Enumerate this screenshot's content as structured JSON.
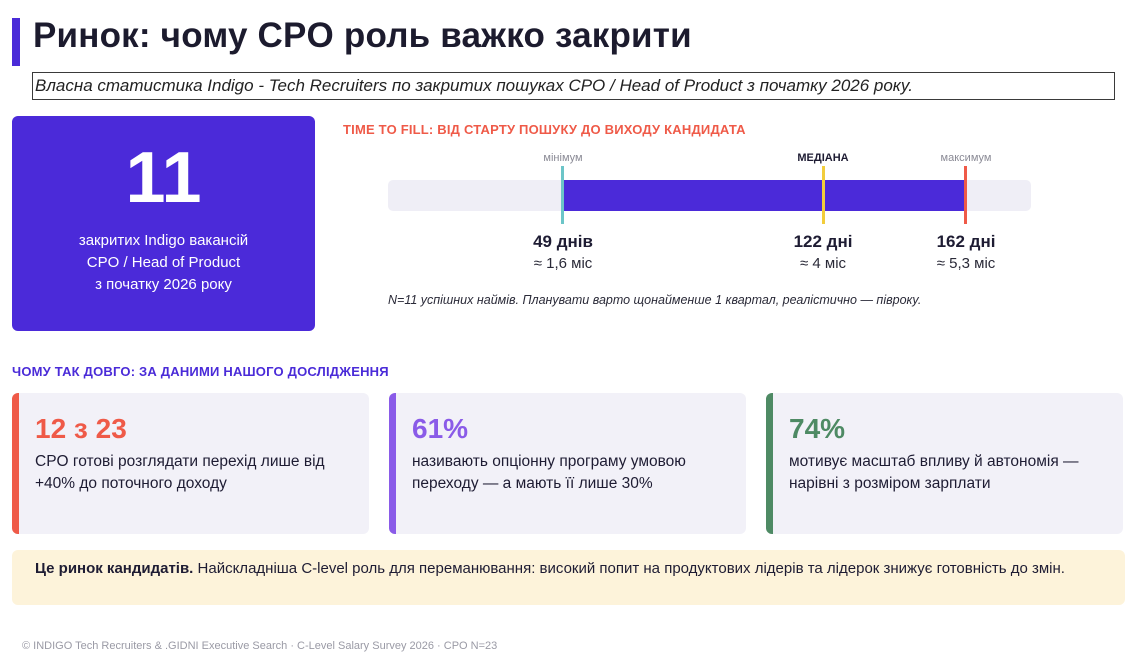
{
  "header": {
    "title": "Ринок: чому CPO роль важко закрити",
    "subtitle": "Власна статистика Indigo - Tech Recruiters по закритих пошуках CPO / Head of Product з початку 2026 року."
  },
  "stat": {
    "number": "11",
    "line1": "закритих  Indigo вакансій",
    "line2": "CPO / Head of Product",
    "line3": "з початку 2026 року"
  },
  "time_to_fill": {
    "heading": "TIME TO FILL: ВІД СТАРТУ ПОШУКУ ДО ВИХОДУ КАНДИДАТА",
    "min_label": "мінімум",
    "median_label": "МЕДІАНА",
    "max_label": "максимум",
    "min_value": "49 днів",
    "min_months": "≈ 1,6 міс",
    "median_value": "122 дні",
    "median_months": "≈ 4 міс",
    "max_value": "162 дні",
    "max_months": "≈ 5,3 міс",
    "note": "N=11 успішних наймів. Планувати варто щонайменше 1 квартал, реалістично — півроку.",
    "days": {
      "min": 49,
      "median": 122,
      "max": 162
    }
  },
  "why": {
    "heading": "ЧОМУ ТАК ДОВГО: ЗА ДАНИМИ НАШОГО ДОСЛІДЖЕННЯ",
    "cards": [
      {
        "big": "12 з 23",
        "text": "CPO готові розглядати перехід лише від +40% до поточного доходу",
        "color": "#ef5a48"
      },
      {
        "big": "61%",
        "text": "називають опціонну програму умовою переходу — а мають її лише 30%",
        "color": "#8a5be8"
      },
      {
        "big": "74%",
        "text": "мотивує масштаб впливу й автономія — нарівні з розміром зарплати",
        "color": "#4e8a64"
      }
    ]
  },
  "footer": {
    "bold": "Це ринок кандидатів.",
    "text": " Найскладніша C-level роль для переманювання: високий попит на продуктових лідерів та лідерок знижує готовність до змін."
  },
  "credit": "© INDIGO Tech Recruiters & .GIDNI Executive Search · C-Level Salary Survey 2026 · CPO N=23",
  "colors": {
    "accent": "#4b2ad9",
    "min_marker": "#6cc5c8",
    "median_marker": "#f2cd3c",
    "max_marker": "#ef5a48"
  }
}
